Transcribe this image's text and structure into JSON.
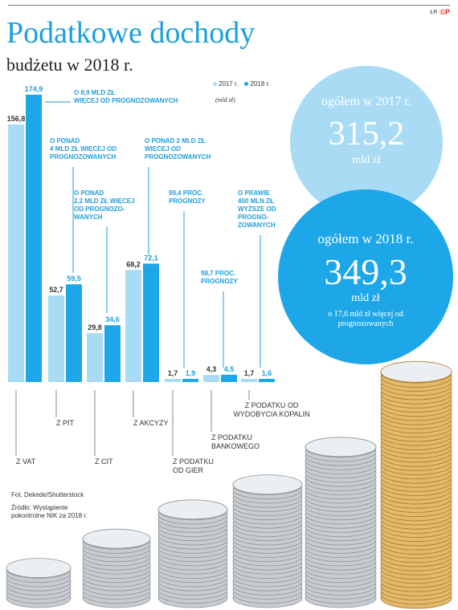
{
  "header": {
    "credit": "ŁR",
    "logo": "©P"
  },
  "title": "Podatkowe dochody",
  "subtitle": "budżetu w 2018 r.",
  "legend": {
    "y2017": "2017 r.",
    "y2018": "2018 r."
  },
  "unit": "(mld zł)",
  "colors": {
    "y2017": "#a9dbf5",
    "y2018": "#1ea7e8",
    "title": "#1d9fdc",
    "annotation": "#1d9fdc"
  },
  "totals": {
    "y2017": {
      "label": "ogółem w 2017 r.",
      "value": "315,2",
      "unit": "mld zł"
    },
    "y2018": {
      "label": "ogółem w 2018 r.",
      "value": "349,3",
      "unit": "mld zł",
      "note": "o 17,6 mld zł więcej od prognozowanych"
    }
  },
  "source": {
    "photo": "Fot. Dekede/Shutterstock",
    "source_lines": [
      "Źródło: Wystąpienie",
      "pokontrolne NIK za 2018 r."
    ]
  },
  "chart_data": {
    "type": "bar",
    "categories": [
      "Z VAT",
      "Z PIT",
      "Z CIT",
      "Z AKCYZY",
      "Z PODATKU OD GIER",
      "Z PODATKU BANKOWEGO",
      "Z PODATKU OD WYDOBYCIA KOPALIN"
    ],
    "category_lines": [
      [
        "Z VAT"
      ],
      [
        "Z PIT"
      ],
      [
        "Z CIT"
      ],
      [
        "Z AKCYZY"
      ],
      [
        "Z PODATKU",
        "OD GIER"
      ],
      [
        "Z PODATKU",
        "BANKOWEGO"
      ],
      [
        "Z PODATKU OD",
        "WYDOBYCIA KOPALIN"
      ]
    ],
    "series": [
      {
        "name": "2017 r.",
        "values": [
          156.8,
          52.7,
          29.8,
          68.2,
          1.7,
          4.3,
          1.7
        ],
        "labels": [
          "156,8",
          "52,7",
          "29,8",
          "68,2",
          "1,7",
          "4,3",
          "1,7"
        ]
      },
      {
        "name": "2018 r.",
        "values": [
          174.9,
          59.5,
          34.6,
          72.1,
          1.9,
          4.5,
          1.6
        ],
        "labels": [
          "174,9",
          "59,5",
          "34,6",
          "72,1",
          "1,9",
          "4,5",
          "1,6"
        ]
      }
    ],
    "annotations": [
      [
        "O 8,9 MLD ZŁ",
        "WIĘCEJ OD PROGNOZOWANYCH"
      ],
      [
        "O PONAD",
        "4 MLD ZŁ WIĘCEJ OD",
        "PROGNOZOWANYCH"
      ],
      [
        "O PONAD",
        "2,2 MLD ZŁ WIĘCEJ",
        "OD PROGNOZO-",
        "WANYCH"
      ],
      [
        "O PONAD 2 MLD ZŁ",
        "WIĘCEJ OD",
        "PROGNOZOWANYCH"
      ],
      [
        "99,4 PROC.",
        "PROGNOZY"
      ],
      [
        "98,7 PROC.",
        "PROGNOZY"
      ],
      [
        "O PRAWIE",
        "400 MLN ZŁ",
        "WYŻSZE OD",
        "PROGNO-",
        "ZOWANYCH"
      ]
    ],
    "ylabel": "(mld zł)",
    "ylim": [
      0,
      174.9
    ]
  }
}
